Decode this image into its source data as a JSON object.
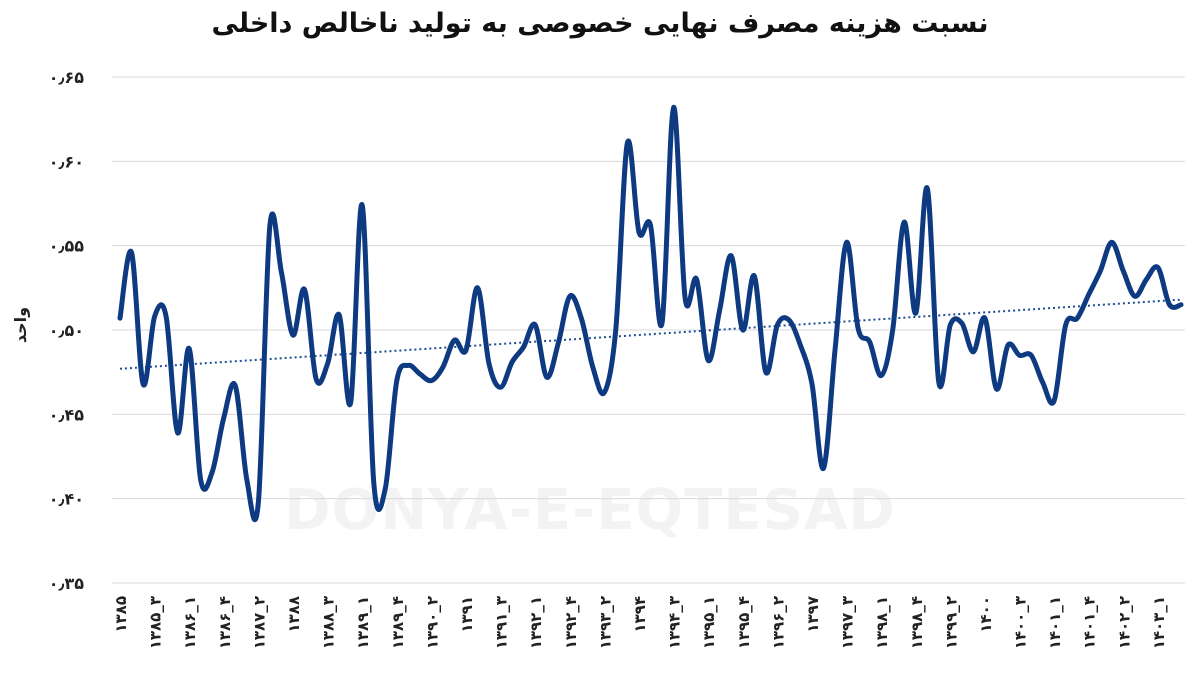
{
  "chart_data": {
    "type": "line",
    "title": "نسبت هزینه مصرف نهایی خصوصی به تولید ناخالص داخلی",
    "ylabel": "واحد",
    "watermark": "DONYA-E-EQTESAD",
    "ylim": [
      0.35,
      0.65
    ],
    "yticks": [
      {
        "value": 0.35,
        "label": "۰٫۳۵"
      },
      {
        "value": 0.4,
        "label": "۰٫۴۰"
      },
      {
        "value": 0.45,
        "label": "۰٫۴۵"
      },
      {
        "value": 0.5,
        "label": "۰٫۵۰"
      },
      {
        "value": 0.55,
        "label": "۰٫۵۵"
      },
      {
        "value": 0.6,
        "label": "۰٫۶۰"
      },
      {
        "value": 0.65,
        "label": "۰٫۶۵"
      }
    ],
    "grid": true,
    "line_color": "#0e3a82",
    "trend_color": "#1f4e96",
    "x_labels": [
      {
        "index": 0,
        "label": "۱۳۸۵"
      },
      {
        "index": 2,
        "label": "۱۳۸۵_۳"
      },
      {
        "index": 4,
        "label": "۱۳۸۶_۱"
      },
      {
        "index": 6,
        "label": "۱۳۸۶_۴"
      },
      {
        "index": 8,
        "label": "۱۳۸۷_۲"
      },
      {
        "index": 10,
        "label": "۱۳۸۸"
      },
      {
        "index": 12,
        "label": "۱۳۸۸_۳"
      },
      {
        "index": 14,
        "label": "۱۳۸۹_۱"
      },
      {
        "index": 16,
        "label": "۱۳۸۹_۴"
      },
      {
        "index": 18,
        "label": "۱۳۹۰_۲"
      },
      {
        "index": 20,
        "label": "۱۳۹۱"
      },
      {
        "index": 22,
        "label": "۱۳۹۱_۳"
      },
      {
        "index": 24,
        "label": "۱۳۹۲_۱"
      },
      {
        "index": 26,
        "label": "۱۳۹۲_۴"
      },
      {
        "index": 28,
        "label": "۱۳۹۳_۲"
      },
      {
        "index": 30,
        "label": "۱۳۹۴"
      },
      {
        "index": 32,
        "label": "۱۳۹۴_۳"
      },
      {
        "index": 34,
        "label": "۱۳۹۵_۱"
      },
      {
        "index": 36,
        "label": "۱۳۹۵_۴"
      },
      {
        "index": 38,
        "label": "۱۳۹۶_۲"
      },
      {
        "index": 40,
        "label": "۱۳۹۷"
      },
      {
        "index": 42,
        "label": "۱۳۹۷_۳"
      },
      {
        "index": 44,
        "label": "۱۳۹۸_۱"
      },
      {
        "index": 46,
        "label": "۱۳۹۸_۴"
      },
      {
        "index": 48,
        "label": "۱۳۹۹_۲"
      },
      {
        "index": 50,
        "label": "۱۴۰۰"
      },
      {
        "index": 52,
        "label": "۱۴۰۰_۳"
      },
      {
        "index": 54,
        "label": "۱۴۰۱_۱"
      },
      {
        "index": 56,
        "label": "۱۴۰۱_۴"
      },
      {
        "index": 58,
        "label": "۱۴۰۲_۲"
      },
      {
        "index": 60,
        "label": "۱۴۰۳_۱"
      }
    ],
    "values": [
      0.507,
      0.546,
      0.468,
      0.508,
      0.508,
      0.439,
      0.489,
      0.411,
      0.416,
      0.448,
      0.467,
      0.411,
      0.398,
      0.562,
      0.534,
      0.497,
      0.524,
      0.471,
      0.48,
      0.509,
      0.457,
      0.574,
      0.41,
      0.406,
      0.47,
      0.479,
      0.474,
      0.47,
      0.478,
      0.494,
      0.488,
      0.525,
      0.48,
      0.466,
      0.481,
      0.49,
      0.503,
      0.472,
      0.492,
      0.52,
      0.507,
      0.478,
      0.463,
      0.501,
      0.611,
      0.558,
      0.562,
      0.504,
      0.632,
      0.519,
      0.53,
      0.482,
      0.512,
      0.544,
      0.5,
      0.532,
      0.475,
      0.503,
      0.506,
      0.491,
      0.468,
      0.418,
      0.488,
      0.552,
      0.501,
      0.493,
      0.473,
      0.5,
      0.564,
      0.51,
      0.584,
      0.469,
      0.503,
      0.504,
      0.487,
      0.507,
      0.465,
      0.491,
      0.485,
      0.485,
      0.469,
      0.458,
      0.503,
      0.507,
      0.521,
      0.535,
      0.552,
      0.535,
      0.52,
      0.53,
      0.537,
      0.515,
      0.515
    ],
    "trend": {
      "start": 0.477,
      "end": 0.518
    }
  }
}
